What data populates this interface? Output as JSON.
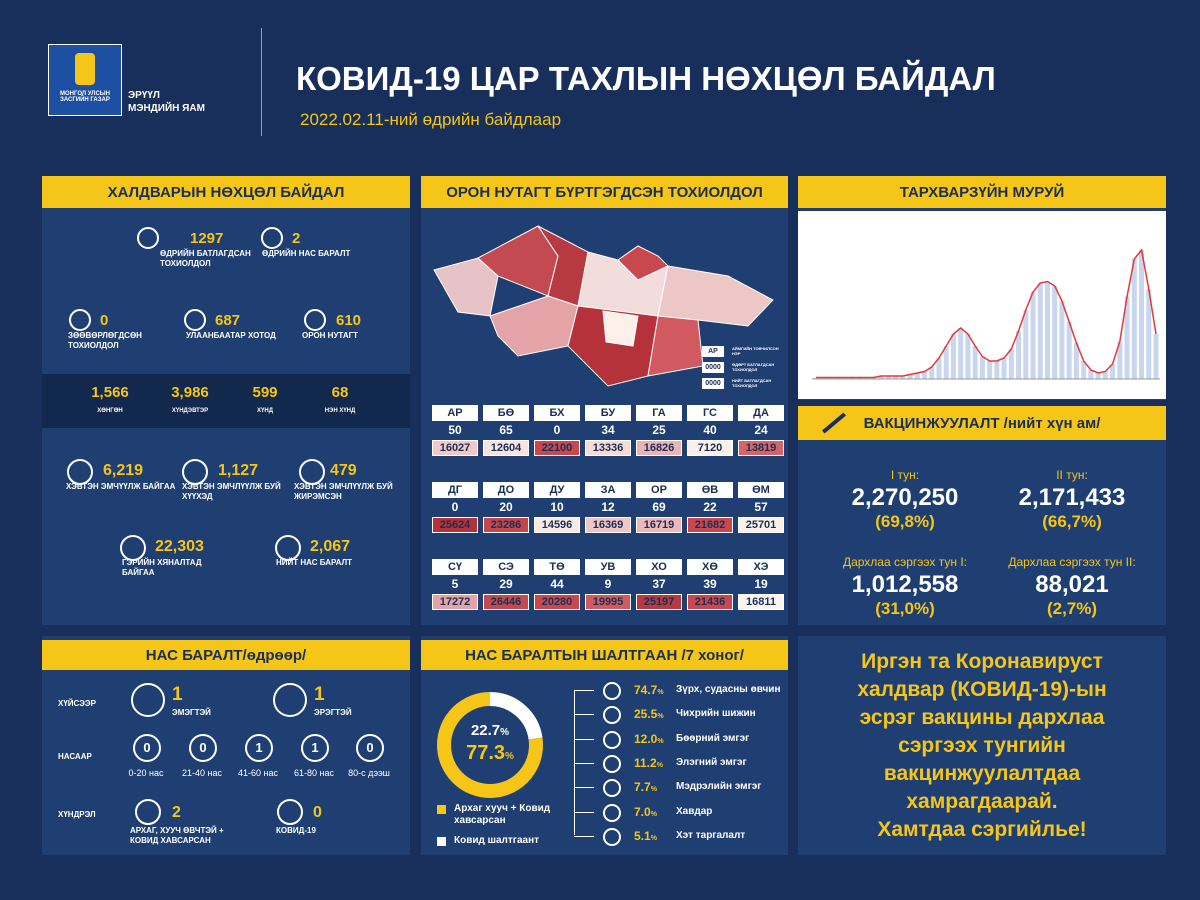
{
  "header": {
    "logo_text": "МОНГОЛ УЛСЫН ЗАСГИЙН ГАЗАР",
    "ministry": [
      "ЭРҮҮЛ",
      "МЭНДИЙН ЯАМ"
    ],
    "title": "КОВИД-19 ЦАР ТАХЛЫН НӨХЦӨЛ БАЙДАЛ",
    "subtitle": "2022.02.11-ний өдрийн байдлаар"
  },
  "infection": {
    "title": "ХАЛДВАРЫН НӨХЦӨЛ БАЙДАЛ",
    "top": [
      {
        "value": "1297",
        "label": "ӨДРИЙН БАТЛАГДСАН ТОХИОЛДОЛ"
      },
      {
        "value": "2",
        "label": "ӨДРИЙН НАС БАРАЛТ"
      }
    ],
    "middle": [
      {
        "value": "0",
        "label": "ЗӨӨВӨРЛӨГДСӨН ТОХИОЛДОЛ"
      },
      {
        "value": "687",
        "label": "УЛААНБААТАР ХОТОД"
      },
      {
        "value": "610",
        "label": "ОРОН НУТАГТ"
      }
    ],
    "severity": [
      {
        "value": "1,566",
        "label": "ХӨНГӨН"
      },
      {
        "value": "3,986",
        "label": "ХҮНДЭВТЭР"
      },
      {
        "value": "599",
        "label": "ХҮНД"
      },
      {
        "value": "68",
        "label": "НЭН ХҮНД"
      }
    ],
    "bottom": [
      {
        "value": "6,219",
        "label": "ХЭВТЭН ЭМЧҮҮЛЖ БАЙГАА"
      },
      {
        "value": "1,127",
        "label": "ХЭВТЭН ЭМЧЛҮҮЛЖ БУЙ ХҮҮХЭД"
      },
      {
        "value": "479",
        "label": "ХЭВТЭН ЭМЧЛҮҮЛЖ БУЙ ЖИРЭМСЭН"
      },
      {
        "value": "22,303",
        "label": "ГЭРИЙН ХЯНАЛТАД БАЙГАА"
      },
      {
        "value": "2,067",
        "label": "НИЙТ НАС БАРАЛТ"
      }
    ]
  },
  "regions": {
    "title": "ОРОН НУТАГТ БҮРТГЭГДСЭН ТОХИОЛДОЛ",
    "legend": [
      {
        "sample": "АР",
        "text": "АЙМГИЙН ТОВЧИЛСОН НЭР"
      },
      {
        "sample": "0000",
        "text": "ӨДӨРТ БАТЛАГДСАН ТОХИОЛДОЛ"
      },
      {
        "sample": "0000",
        "text": "НИЙТ БАТЛАГДСАН ТОХИОЛДОЛ"
      }
    ],
    "provinces": [
      {
        "code": "АР",
        "daily": "50",
        "total": "16027",
        "color": "#f2c9c9"
      },
      {
        "code": "БӨ",
        "daily": "65",
        "total": "12604",
        "color": "#f7e3e0"
      },
      {
        "code": "БХ",
        "daily": "0",
        "total": "22100",
        "color": "#c9484f"
      },
      {
        "code": "БУ",
        "daily": "34",
        "total": "13336",
        "color": "#f5dcd5"
      },
      {
        "code": "ГА",
        "daily": "25",
        "total": "16826",
        "color": "#eab3b6"
      },
      {
        "code": "ГС",
        "daily": "40",
        "total": "7120",
        "color": "#fbf0ea"
      },
      {
        "code": "ДА",
        "daily": "24",
        "total": "13819",
        "color": "#d4646a"
      },
      {
        "code": "ДГ",
        "daily": "0",
        "total": "25624",
        "color": "#b5323a"
      },
      {
        "code": "ДО",
        "daily": "20",
        "total": "23286",
        "color": "#c4474e"
      },
      {
        "code": "ДУ",
        "daily": "10",
        "total": "14596",
        "color": "#f8ebe6"
      },
      {
        "code": "ЗА",
        "daily": "12",
        "total": "16369",
        "color": "#f0c5c5"
      },
      {
        "code": "ОР",
        "daily": "69",
        "total": "16719",
        "color": "#ecb8ba"
      },
      {
        "code": "ӨВ",
        "daily": "22",
        "total": "21682",
        "color": "#c9484f"
      },
      {
        "code": "ӨМ",
        "daily": "57",
        "total": "25701",
        "color": "#fbf0ea"
      },
      {
        "code": "СҮ",
        "daily": "5",
        "total": "17272",
        "color": "#e4a3a6"
      },
      {
        "code": "СЭ",
        "daily": "29",
        "total": "26446",
        "color": "#c24a50"
      },
      {
        "code": "ТӨ",
        "daily": "44",
        "total": "20280",
        "color": "#c9484f"
      },
      {
        "code": "УВ",
        "daily": "9",
        "total": "19995",
        "color": "#d05a60"
      },
      {
        "code": "ХО",
        "daily": "37",
        "total": "25197",
        "color": "#b73a41"
      },
      {
        "code": "ХӨ",
        "daily": "39",
        "total": "21436",
        "color": "#c9484f"
      },
      {
        "code": "ХЭ",
        "daily": "19",
        "total": "16811",
        "color": "#fbf5f0"
      }
    ]
  },
  "epidemic_curve": {
    "title": "ТАРХВАРЗҮЙН МУРУЙ",
    "bar_color": "#c9d6ef",
    "line_color": "#e03a3a",
    "ylim": [
      0,
      100
    ],
    "values": [
      1,
      1,
      1,
      1,
      1,
      1,
      1,
      1,
      1,
      2,
      2,
      2,
      2,
      3,
      4,
      5,
      8,
      14,
      22,
      30,
      34,
      30,
      22,
      15,
      12,
      12,
      14,
      20,
      32,
      46,
      58,
      64,
      65,
      62,
      52,
      38,
      24,
      12,
      6,
      4,
      5,
      10,
      25,
      55,
      80,
      86,
      60,
      30
    ]
  },
  "vaccination": {
    "title": "ВАКЦИНЖУУЛАЛТ /нийт хүн ам/",
    "doses": [
      {
        "label": "I тун:",
        "value": "2,270,250",
        "percent": "(69,8%)"
      },
      {
        "label": "II тун:",
        "value": "2,171,433",
        "percent": "(66,7%)"
      },
      {
        "label": "Дархлаа сэргээх тун I:",
        "value": "1,012,558",
        "percent": "(31,0%)"
      },
      {
        "label": "Дархлаа сэргээх тун II:",
        "value": "88,021",
        "percent": "(2,7%)"
      }
    ]
  },
  "deaths": {
    "title": "НАС БАРАЛТ/өдрөөр/",
    "sex": {
      "label": "ХҮЙСЭЭР",
      "items": [
        {
          "value": "1",
          "label": "ЭМЭГТЭЙ"
        },
        {
          "value": "1",
          "label": "ЭРЭГТЭЙ"
        }
      ]
    },
    "age": {
      "label": "НАСААР",
      "items": [
        {
          "value": "0",
          "label": "0-20 нас"
        },
        {
          "value": "0",
          "label": "21-40 нас"
        },
        {
          "value": "1",
          "label": "41-60 нас"
        },
        {
          "value": "1",
          "label": "61-80 нас"
        },
        {
          "value": "0",
          "label": "80-с дээш"
        }
      ]
    },
    "complication": {
      "label": "ХҮНДРЭЛ",
      "items": [
        {
          "value": "2",
          "label": "АРХАГ, ХУУЧ ӨВЧТЭЙ + КОВИД ХАВСАРСАН"
        },
        {
          "value": "0",
          "label": "КОВИД-19"
        }
      ]
    }
  },
  "causes": {
    "title": "НАС БАРАЛТЫН ШАЛТГААН /7 хоног/",
    "unit": "%",
    "donut": [
      {
        "value": 22.7,
        "color": "#ffffff",
        "label": "Ковид шалтгаант"
      },
      {
        "value": 77.3,
        "color": "#f5c518",
        "label": "Архаг хууч + Ковид хавсарсан"
      }
    ],
    "items": [
      {
        "value": "74.7",
        "label": "Зүрх, судасны өвчин"
      },
      {
        "value": "25.5",
        "label": "Чихрийн шижин"
      },
      {
        "value": "12.0",
        "label": "Бөөрний эмгэг"
      },
      {
        "value": "11.2",
        "label": "Элэгний эмгэг"
      },
      {
        "value": "7.7",
        "label": "Мэдрэлийн эмгэг"
      },
      {
        "value": "7.0",
        "label": "Хавдар"
      },
      {
        "value": "5.1",
        "label": "Хэт таргалалт"
      }
    ]
  },
  "message": [
    "Иргэн та Коронавируст",
    "халдвар (КОВИД-19)-ын",
    "эсрэг вакцины дархлаа",
    "сэргээх тунгийн",
    "вакцинжуулалтдаа",
    "хамрагдаарай.",
    "Хамтдаа сэргийлье!"
  ]
}
